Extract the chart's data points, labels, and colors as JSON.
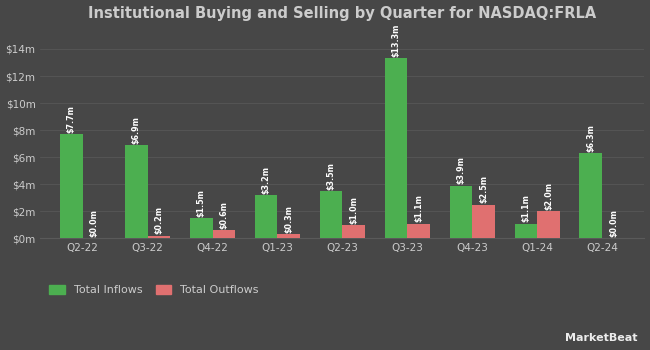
{
  "title": "Institutional Buying and Selling by Quarter for NASDAQ:FRLA",
  "categories": [
    "Q2-22",
    "Q3-22",
    "Q4-22",
    "Q1-23",
    "Q2-23",
    "Q3-23",
    "Q4-23",
    "Q1-24",
    "Q2-24"
  ],
  "inflows": [
    7.7,
    6.9,
    1.5,
    3.2,
    3.5,
    13.3,
    3.9,
    1.1,
    6.3
  ],
  "outflows": [
    0.0,
    0.2,
    0.6,
    0.3,
    1.0,
    1.1,
    2.5,
    2.0,
    0.0
  ],
  "inflow_labels": [
    "$7.7m",
    "$6.9m",
    "$1.5m",
    "$3.2m",
    "$3.5m",
    "$13.3m",
    "$3.9m",
    "$1.1m",
    "$6.3m"
  ],
  "outflow_labels": [
    "$0.0m",
    "$0.2m",
    "$0.6m",
    "$0.3m",
    "$1.0m",
    "$1.1m",
    "$2.5m",
    "$2.0m",
    "$0.0m"
  ],
  "inflow_color": "#4caf50",
  "outflow_color": "#e07070",
  "background_color": "#474747",
  "grid_color": "#5a5a5a",
  "text_color": "#cccccc",
  "bar_label_color": "#ffffff",
  "legend_inflow": "Total Inflows",
  "legend_outflow": "Total Outflows",
  "legend_inflow_color": "#4caf50",
  "legend_outflow_color": "#e07070",
  "ylim": [
    0,
    15.5
  ],
  "yticks": [
    0,
    2,
    4,
    6,
    8,
    10,
    12,
    14
  ],
  "ytick_labels": [
    "$0m",
    "$2m",
    "$4m",
    "$6m",
    "$8m",
    "$10m",
    "$12m",
    "$14m"
  ],
  "bar_width": 0.35,
  "figsize": [
    6.5,
    3.5
  ],
  "dpi": 100,
  "marketbeat_text": "MarketBeat"
}
